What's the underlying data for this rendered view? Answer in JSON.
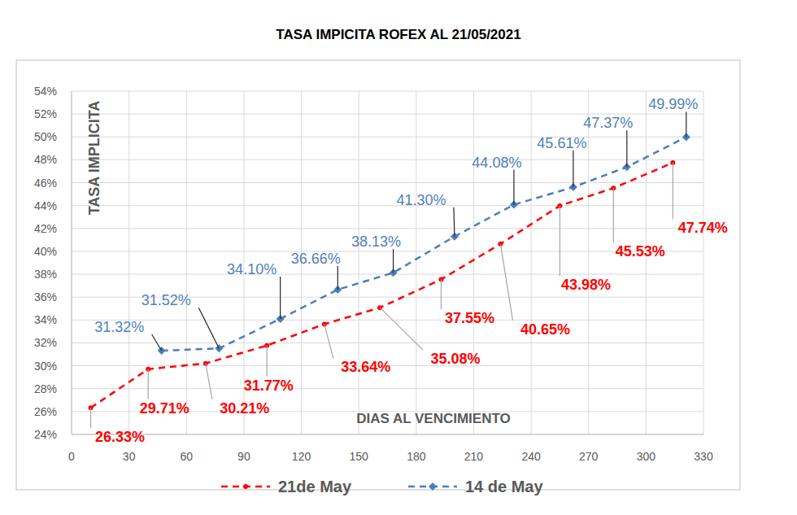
{
  "chart_data": {
    "type": "line",
    "title": "TASA IMPICITA ROFEX AL 21/05/2021",
    "y_label": "TASA IMPLICITA",
    "x_label": "DIAS AL VENCIMIENTO",
    "xlim": [
      0,
      330
    ],
    "xticks": [
      0,
      30,
      60,
      90,
      120,
      150,
      180,
      210,
      240,
      270,
      300,
      330
    ],
    "ylim": [
      24,
      54
    ],
    "yticks": [
      {
        "value": 24,
        "label": "24%"
      },
      {
        "value": 26,
        "label": "26%"
      },
      {
        "value": 28,
        "label": "28%"
      },
      {
        "value": 30,
        "label": "30%"
      },
      {
        "value": 32,
        "label": "32%"
      },
      {
        "value": 34,
        "label": "34%"
      },
      {
        "value": 36,
        "label": "36%"
      },
      {
        "value": 38,
        "label": "38%"
      },
      {
        "value": 40,
        "label": "40%"
      },
      {
        "value": 42,
        "label": "42%"
      },
      {
        "value": 44,
        "label": "44%"
      },
      {
        "value": 46,
        "label": "46%"
      },
      {
        "value": 48,
        "label": "48%"
      },
      {
        "value": 50,
        "label": "50%"
      },
      {
        "value": 52,
        "label": "52%"
      },
      {
        "value": 54,
        "label": "54%"
      }
    ],
    "grid": true,
    "legend": "bottom",
    "data_labels": true,
    "series": [
      {
        "name": "21de May",
        "color": "#ff0000",
        "marker": "circle",
        "line_style": "dashed",
        "x": [
          10,
          40,
          70,
          102,
          132,
          161,
          193,
          224,
          255,
          283,
          314
        ],
        "values": [
          26.33,
          29.71,
          30.21,
          31.77,
          33.64,
          35.08,
          37.55,
          40.65,
          43.98,
          45.53,
          47.74
        ],
        "value_labels": [
          "26.33%",
          "29.71%",
          "30.21%",
          "31.77%",
          "33.64%",
          "35.08%",
          "37.55%",
          "40.65%",
          "43.98%",
          "45.53%",
          "47.74%"
        ]
      },
      {
        "name": "14 de May",
        "color": "#4a7ebb",
        "marker": "diamond",
        "line_style": "dashed",
        "x": [
          47,
          77,
          109,
          139,
          168,
          200,
          231,
          262,
          290,
          321
        ],
        "values": [
          31.32,
          31.52,
          34.1,
          36.66,
          38.13,
          41.3,
          44.08,
          45.61,
          47.37,
          49.99
        ],
        "value_labels": [
          "31.32%",
          "31.52%",
          "34.10%",
          "36.66%",
          "38.13%",
          "41.30%",
          "44.08%",
          "45.61%",
          "47.37%",
          "49.99%"
        ]
      }
    ]
  }
}
